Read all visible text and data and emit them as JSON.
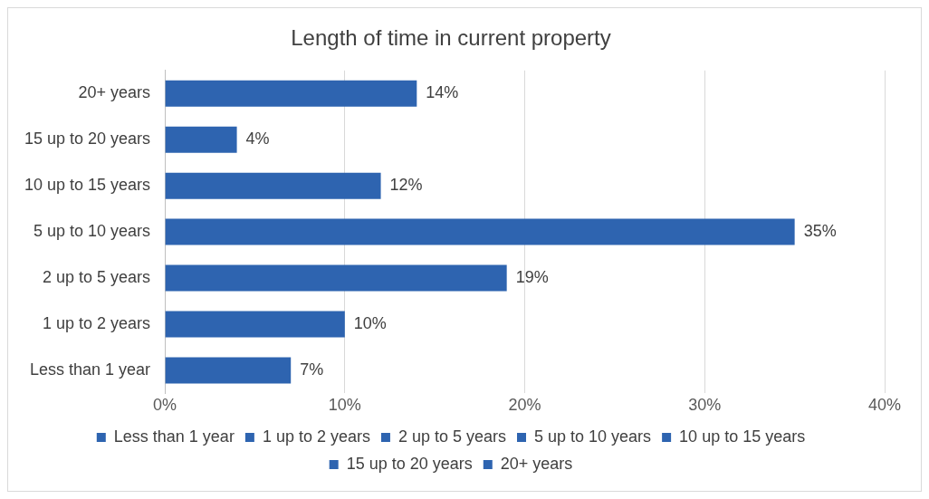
{
  "chart_data": {
    "type": "bar",
    "orientation": "horizontal",
    "stacked": true,
    "title": "Length of time in current property",
    "categories": [
      "20+ years",
      "15 up to 20 years",
      "10 up to 15 years",
      "5 up to 10 years",
      "2 up to 5 years",
      "1 up to 2 years",
      "Less than 1 year"
    ],
    "series": [
      {
        "name": "Less than 1 year",
        "color": "#2e64b0",
        "values": [
          null,
          null,
          null,
          null,
          null,
          null,
          7
        ],
        "value_labels": [
          null,
          null,
          null,
          null,
          null,
          null,
          "7%"
        ]
      },
      {
        "name": "1 up to 2 years",
        "color": "#2e64b0",
        "values": [
          null,
          null,
          null,
          null,
          null,
          10,
          null
        ],
        "value_labels": [
          null,
          null,
          null,
          null,
          null,
          "10%",
          null
        ]
      },
      {
        "name": "2 up to 5 years",
        "color": "#2e64b0",
        "values": [
          null,
          null,
          null,
          null,
          19,
          null,
          null
        ],
        "value_labels": [
          null,
          null,
          null,
          null,
          "19%",
          null,
          null
        ]
      },
      {
        "name": "5 up to 10 years",
        "color": "#2e64b0",
        "values": [
          null,
          null,
          null,
          35,
          null,
          null,
          null
        ],
        "value_labels": [
          null,
          null,
          null,
          "35%",
          null,
          null,
          null
        ]
      },
      {
        "name": "10 up to 15 years",
        "color": "#2e64b0",
        "values": [
          null,
          null,
          12,
          null,
          null,
          null,
          null
        ],
        "value_labels": [
          null,
          null,
          "12%",
          null,
          null,
          null,
          null
        ]
      },
      {
        "name": "15 up to 20 years",
        "color": "#2e64b0",
        "values": [
          null,
          4,
          null,
          null,
          null,
          null,
          null
        ],
        "value_labels": [
          null,
          "4%",
          null,
          null,
          null,
          null,
          null
        ]
      },
      {
        "name": "20+ years",
        "color": "#2e64b0",
        "values": [
          14,
          null,
          null,
          null,
          null,
          null,
          null
        ],
        "value_labels": [
          "14%",
          null,
          null,
          null,
          null,
          null,
          null
        ]
      }
    ],
    "xlim": [
      0,
      40
    ],
    "xticks": [
      {
        "value": 0,
        "label": "0%"
      },
      {
        "value": 10,
        "label": "10%"
      },
      {
        "value": 20,
        "label": "20%"
      },
      {
        "value": 30,
        "label": "30%"
      },
      {
        "value": 40,
        "label": "40%"
      }
    ],
    "grid": "x",
    "legend": "bottom"
  }
}
